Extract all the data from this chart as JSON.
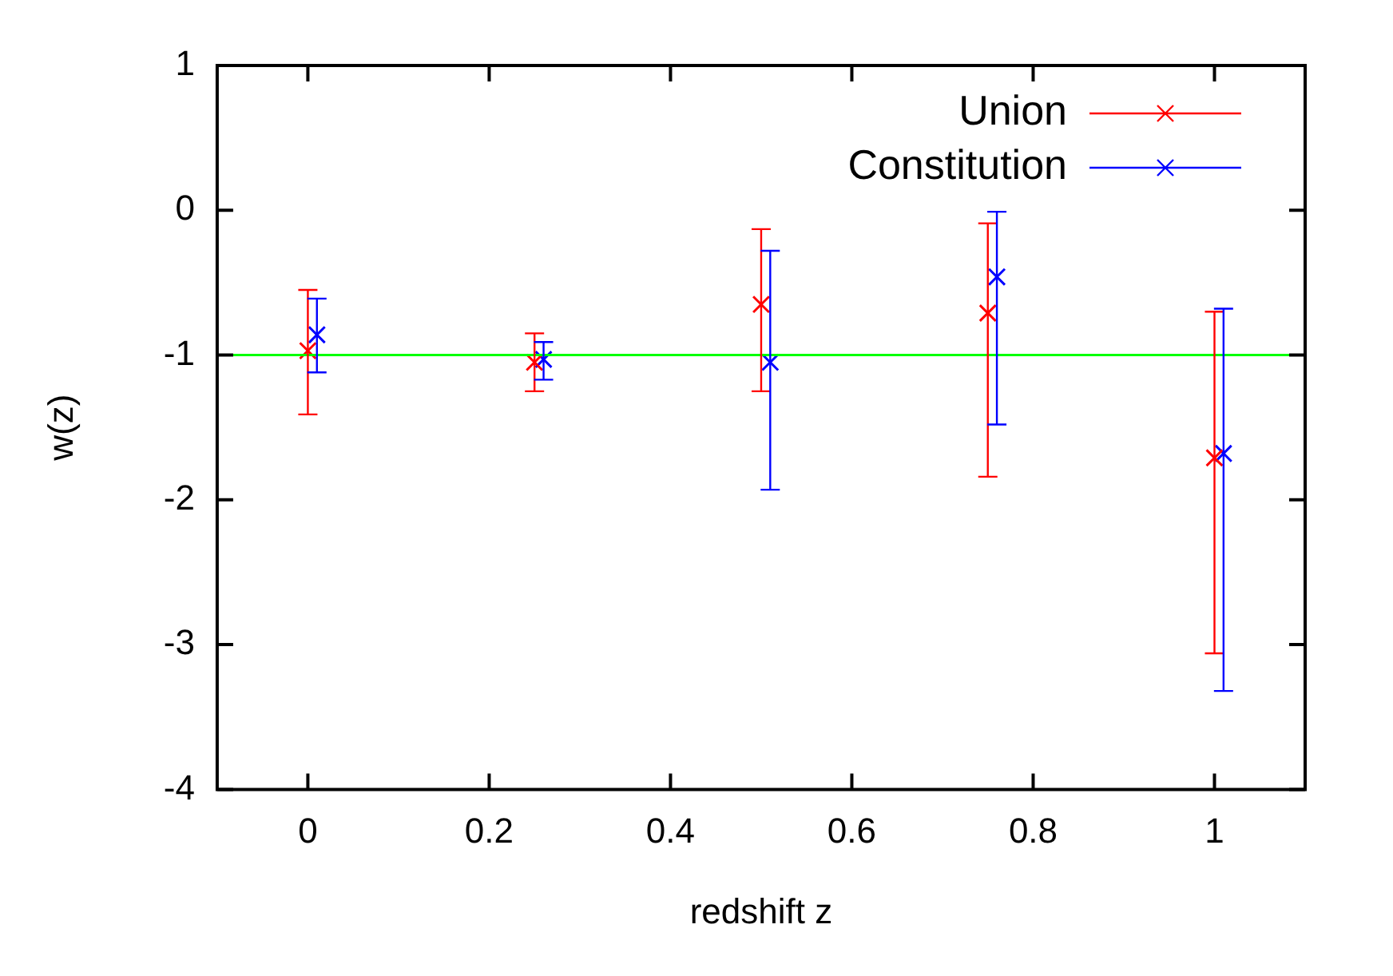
{
  "chart_data": {
    "type": "scatter",
    "xlabel": "redshift z",
    "ylabel": "w(z)",
    "xlim": [
      -0.1,
      1.1
    ],
    "xticks": [
      0,
      0.2,
      0.4,
      0.6,
      0.8,
      1
    ],
    "ylim": [
      -4,
      1
    ],
    "yticks": [
      -4,
      -3,
      -2,
      -1,
      0,
      1
    ],
    "grid": false,
    "legend": "top right",
    "series": [
      {
        "name": "Union",
        "color": "#ff0000",
        "marker": "cross",
        "x": [
          0,
          0.25,
          0.5,
          0.75,
          1
        ],
        "values": [
          -0.97,
          -1.05,
          -0.65,
          -0.71,
          -1.71
        ],
        "errors": [
          [
            -1.41,
            -0.55
          ],
          [
            -1.25,
            -0.85
          ],
          [
            -1.25,
            -0.13
          ],
          [
            -1.84,
            -0.09
          ],
          [
            -3.06,
            -0.7
          ]
        ]
      },
      {
        "name": "Constitution",
        "color": "#0000ff",
        "marker": "cross",
        "x": [
          0.01,
          0.26,
          0.51,
          0.76,
          1.01
        ],
        "values": [
          -0.86,
          -1.03,
          -1.05,
          -0.46,
          -1.68
        ],
        "errors": [
          [
            -1.12,
            -0.61
          ],
          [
            -1.17,
            -0.91
          ],
          [
            -1.93,
            -0.28
          ],
          [
            -1.48,
            -0.01
          ],
          [
            -3.32,
            -0.68
          ]
        ]
      }
    ],
    "ref_lines": [
      {
        "axis": "y",
        "value": -1,
        "color": "#00ff00"
      }
    ]
  }
}
